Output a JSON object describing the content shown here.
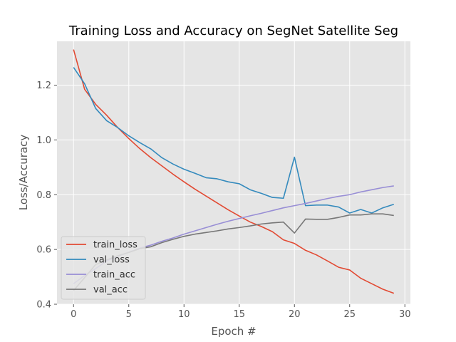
{
  "chart_data": {
    "type": "line",
    "title": "Training Loss and Accuracy on SegNet Satellite Seg",
    "xlabel": "Epoch #",
    "ylabel": "Loss/Accuracy",
    "xlim": [
      -1.5,
      30.5
    ],
    "ylim": [
      0.4,
      1.36
    ],
    "xticks": [
      0,
      5,
      10,
      15,
      20,
      25,
      30
    ],
    "yticks": [
      0.4,
      0.6,
      0.8,
      1.0,
      1.2
    ],
    "ytick_labels": [
      "0.4",
      "0.6",
      "0.8",
      "1.0",
      "1.2"
    ],
    "grid": true,
    "legend_position": "lower-left",
    "x": [
      0,
      1,
      2,
      3,
      4,
      5,
      6,
      7,
      8,
      9,
      10,
      11,
      12,
      13,
      14,
      15,
      16,
      17,
      18,
      19,
      20,
      21,
      22,
      23,
      24,
      25,
      26,
      27,
      28,
      29
    ],
    "series": [
      {
        "name": "train_loss",
        "color": "#e24a33",
        "values": [
          1.33,
          1.185,
          1.13,
          1.09,
          1.045,
          1.005,
          0.968,
          0.935,
          0.905,
          0.875,
          0.847,
          0.82,
          0.795,
          0.77,
          0.745,
          0.722,
          0.7,
          0.684,
          0.665,
          0.635,
          0.622,
          0.597,
          0.58,
          0.558,
          0.535,
          0.525,
          0.495,
          0.475,
          0.455,
          0.44
        ]
      },
      {
        "name": "val_loss",
        "color": "#348abd",
        "values": [
          1.265,
          1.205,
          1.115,
          1.07,
          1.045,
          1.015,
          0.99,
          0.967,
          0.935,
          0.912,
          0.893,
          0.878,
          0.862,
          0.858,
          0.847,
          0.84,
          0.818,
          0.805,
          0.79,
          0.787,
          0.937,
          0.76,
          0.762,
          0.762,
          0.755,
          0.733,
          0.746,
          0.733,
          0.752,
          0.765
        ]
      },
      {
        "name": "train_acc",
        "color": "#988ed5",
        "values": [
          0.475,
          0.505,
          0.53,
          0.558,
          0.575,
          0.59,
          0.605,
          0.616,
          0.63,
          0.642,
          0.656,
          0.668,
          0.68,
          0.692,
          0.703,
          0.713,
          0.723,
          0.732,
          0.742,
          0.752,
          0.76,
          0.768,
          0.777,
          0.786,
          0.794,
          0.8,
          0.81,
          0.818,
          0.826,
          0.832
        ]
      },
      {
        "name": "val_acc",
        "color": "#777777",
        "values": [
          0.45,
          0.497,
          0.545,
          0.562,
          0.577,
          0.589,
          0.603,
          0.61,
          0.625,
          0.637,
          0.648,
          0.656,
          0.662,
          0.668,
          0.675,
          0.68,
          0.686,
          0.693,
          0.697,
          0.7,
          0.66,
          0.711,
          0.71,
          0.71,
          0.717,
          0.726,
          0.726,
          0.73,
          0.73,
          0.724
        ]
      }
    ]
  }
}
